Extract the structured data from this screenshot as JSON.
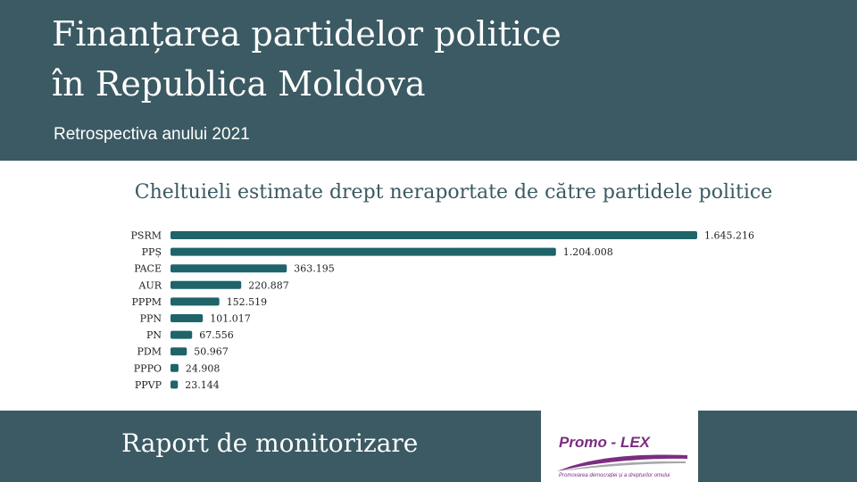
{
  "header": {
    "title_line1": "Finanțarea partidelor politice",
    "title_line2": "în Republica Moldova",
    "subtitle": "Retrospectiva anului 2021"
  },
  "footer": {
    "title": "Raport de monitorizare",
    "logo_text": "Promo - LEX",
    "logo_tagline": "Promovarea democrației și a drepturilor omului"
  },
  "colors": {
    "header_bg": "#3b5a63",
    "bar": "#1e6468",
    "logo": "#7a2e80"
  },
  "chart_data": {
    "type": "bar",
    "orientation": "horizontal",
    "title": "Cheltuieli estimate drept neraportate de către partidele politice",
    "categories": [
      "PSRM",
      "PPȘ",
      "PACE",
      "AUR",
      "PPPM",
      "PPN",
      "PN",
      "PDM",
      "PPPO",
      "PPVP"
    ],
    "values": [
      1645216,
      1204008,
      363195,
      220887,
      152519,
      101017,
      67556,
      50967,
      24908,
      23144
    ],
    "value_labels": [
      "1.645.216",
      "1.204.008",
      "363.195",
      "220.887",
      "152.519",
      "101.017",
      "67.556",
      "50.967",
      "24.908",
      "23.144"
    ],
    "xlim": [
      0,
      1645216
    ],
    "grid": false,
    "legend": "none"
  }
}
